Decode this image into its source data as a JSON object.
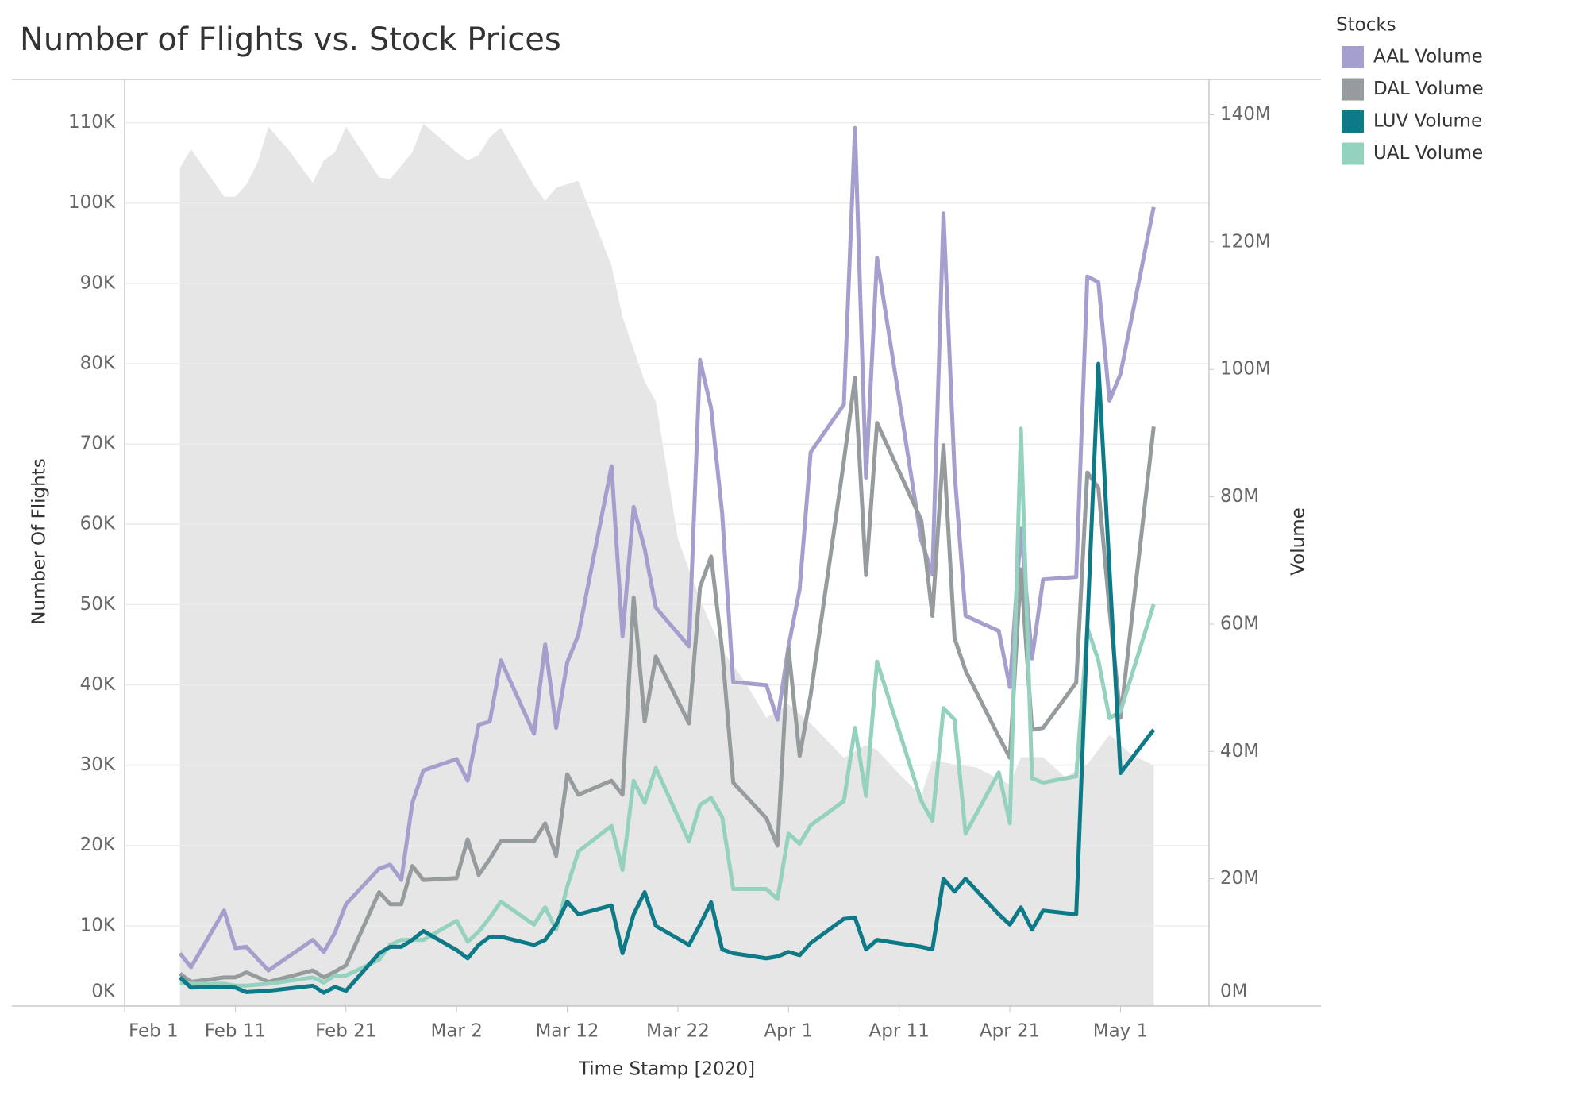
{
  "chart_data": {
    "type": "line",
    "title": "Number of Flights vs. Stock Prices",
    "x_label": "Time Stamp [2020]",
    "y_label": "Number Of Flights",
    "y2_label": "Volume",
    "legend_title": "Stocks",
    "legend_position": "right",
    "grid": true,
    "xlim": [
      "2020-02-01",
      "2020-05-09"
    ],
    "xticks": [
      {
        "value": "2020-02-01",
        "label": "Feb 1"
      },
      {
        "value": "2020-02-11",
        "label": "Feb 11"
      },
      {
        "value": "2020-02-21",
        "label": "Feb 21"
      },
      {
        "value": "2020-03-02",
        "label": "Mar 2"
      },
      {
        "value": "2020-03-12",
        "label": "Mar 12"
      },
      {
        "value": "2020-03-22",
        "label": "Mar 22"
      },
      {
        "value": "2020-04-01",
        "label": "Apr 1"
      },
      {
        "value": "2020-04-11",
        "label": "Apr 11"
      },
      {
        "value": "2020-04-21",
        "label": "Apr 21"
      },
      {
        "value": "2020-05-01",
        "label": "May 1"
      }
    ],
    "ylim": [
      0,
      115200
    ],
    "yticks": [
      {
        "value": 0,
        "label": "0K"
      },
      {
        "value": 10000,
        "label": "10K"
      },
      {
        "value": 20000,
        "label": "20K"
      },
      {
        "value": 30000,
        "label": "30K"
      },
      {
        "value": 40000,
        "label": "40K"
      },
      {
        "value": 50000,
        "label": "50K"
      },
      {
        "value": 60000,
        "label": "60K"
      },
      {
        "value": 70000,
        "label": "70K"
      },
      {
        "value": 80000,
        "label": "80K"
      },
      {
        "value": 90000,
        "label": "90K"
      },
      {
        "value": 100000,
        "label": "100K"
      },
      {
        "value": 110000,
        "label": "110K"
      }
    ],
    "y2lim": [
      0,
      145300
    ],
    "y2lim_scale": 1000,
    "y2ticks": [
      {
        "value": 0,
        "label": "0M"
      },
      {
        "value": 20000000,
        "label": "20M"
      },
      {
        "value": 40000000,
        "label": "40M"
      },
      {
        "value": 60000000,
        "label": "60M"
      },
      {
        "value": 80000000,
        "label": "80M"
      },
      {
        "value": 100000000,
        "label": "100M"
      },
      {
        "value": 120000000,
        "label": "120M"
      },
      {
        "value": 140000000,
        "label": "140M"
      }
    ],
    "area": {
      "color": "#e6e6e6",
      "x": [
        "2020-02-06",
        "2020-02-07",
        "2020-02-10",
        "2020-02-11",
        "2020-02-12",
        "2020-02-13",
        "2020-02-14",
        "2020-02-16",
        "2020-02-18",
        "2020-02-19",
        "2020-02-20",
        "2020-02-21",
        "2020-02-24",
        "2020-02-25",
        "2020-02-27",
        "2020-02-28",
        "2020-03-02",
        "2020-03-03",
        "2020-03-04",
        "2020-03-05",
        "2020-03-06",
        "2020-03-09",
        "2020-03-10",
        "2020-03-11",
        "2020-03-13",
        "2020-03-16",
        "2020-03-17",
        "2020-03-19",
        "2020-03-20",
        "2020-03-22",
        "2020-03-24",
        "2020-03-26",
        "2020-03-28",
        "2020-03-30",
        "2020-04-01",
        "2020-04-03",
        "2020-04-06",
        "2020-04-08",
        "2020-04-09",
        "2020-04-11",
        "2020-04-13",
        "2020-04-14",
        "2020-04-16",
        "2020-04-18",
        "2020-04-21",
        "2020-04-22",
        "2020-04-24",
        "2020-04-26",
        "2020-04-28",
        "2020-04-30",
        "2020-05-02",
        "2020-05-04"
      ],
      "values": [
        104400,
        106700,
        100800,
        100800,
        102300,
        105000,
        109500,
        106300,
        102500,
        105300,
        106300,
        109500,
        103200,
        103000,
        106300,
        109900,
        106300,
        105300,
        106000,
        108200,
        109400,
        102200,
        100300,
        101900,
        102800,
        92200,
        85800,
        77800,
        75300,
        58200,
        50600,
        44300,
        40500,
        35900,
        37600,
        35200,
        30900,
        32500,
        31900,
        28900,
        26200,
        30600,
        30100,
        29700,
        27600,
        31000,
        31000,
        28500,
        30100,
        33800,
        31300,
        30000
      ]
    },
    "x": [
      "2020-02-06",
      "2020-02-07",
      "2020-02-10",
      "2020-02-11",
      "2020-02-12",
      "2020-02-14",
      "2020-02-18",
      "2020-02-19",
      "2020-02-20",
      "2020-02-21",
      "2020-02-24",
      "2020-02-25",
      "2020-02-26",
      "2020-02-27",
      "2020-02-28",
      "2020-03-02",
      "2020-03-03",
      "2020-03-04",
      "2020-03-05",
      "2020-03-06",
      "2020-03-09",
      "2020-03-10",
      "2020-03-11",
      "2020-03-12",
      "2020-03-13",
      "2020-03-16",
      "2020-03-17",
      "2020-03-18",
      "2020-03-19",
      "2020-03-20",
      "2020-03-23",
      "2020-03-24",
      "2020-03-25",
      "2020-03-26",
      "2020-03-27",
      "2020-03-30",
      "2020-03-31",
      "2020-04-01",
      "2020-04-02",
      "2020-04-03",
      "2020-04-06",
      "2020-04-07",
      "2020-04-08",
      "2020-04-09",
      "2020-04-13",
      "2020-04-14",
      "2020-04-15",
      "2020-04-16",
      "2020-04-17",
      "2020-04-20",
      "2020-04-21",
      "2020-04-22",
      "2020-04-23",
      "2020-04-24",
      "2020-04-27",
      "2020-04-28",
      "2020-04-29",
      "2020-04-30",
      "2020-05-01",
      "2020-05-04"
    ],
    "series": [
      {
        "name": "AAL Volume",
        "color": "#a59fcd",
        "axis": "y2",
        "values": [
          8300000,
          6100000,
          15000000,
          9100000,
          9300000,
          5600000,
          10400000,
          8500000,
          11500000,
          16000000,
          21600000,
          22200000,
          19800000,
          31900000,
          37000000,
          38800000,
          35400000,
          44200000,
          44700000,
          54300000,
          42800000,
          56800000,
          43700000,
          54000000,
          58300000,
          84800000,
          58100000,
          78400000,
          71800000,
          62600000,
          56500000,
          101500000,
          93900000,
          77400000,
          50900000,
          50400000,
          45000000,
          56500000,
          65500000,
          87000000,
          94500000,
          137900000,
          83000000,
          117500000,
          73100000,
          67800000,
          124500000,
          84000000,
          61300000,
          58900000,
          50100000,
          75000000,
          54600000,
          67000000,
          67400000,
          114600000,
          113700000,
          95100000,
          99300000,
          125500000
        ]
      },
      {
        "name": "DAL Volume",
        "color": "#969b9d",
        "axis": "y2",
        "values": [
          5100000,
          3800000,
          4500000,
          4500000,
          5300000,
          3800000,
          5600000,
          4500000,
          5400000,
          6400000,
          17900000,
          16000000,
          16000000,
          22000000,
          19800000,
          20100000,
          26200000,
          20600000,
          23100000,
          25900000,
          25900000,
          28700000,
          23600000,
          36400000,
          33200000,
          35400000,
          33200000,
          64200000,
          44700000,
          54900000,
          44400000,
          65800000,
          70600000,
          55900000,
          35100000,
          29500000,
          25200000,
          56200000,
          39300000,
          48900000,
          85600000,
          98700000,
          67700000,
          91600000,
          76300000,
          61300000,
          88100000,
          57800000,
          52700000,
          42300000,
          39000000,
          68600000,
          43400000,
          43700000,
          50800000,
          83800000,
          81400000,
          62300000,
          45300000,
          91000000
        ]
      },
      {
        "name": "UAL Volume",
        "color": "#95d1bf",
        "axis": "y2",
        "values": [
          3700000,
          3500000,
          3500000,
          3200000,
          3200000,
          3500000,
          4500000,
          3700000,
          4800000,
          4800000,
          7300000,
          9600000,
          10400000,
          10400000,
          10400000,
          13400000,
          10100000,
          11700000,
          13900000,
          16400000,
          12800000,
          15500000,
          12000000,
          18800000,
          24300000,
          28300000,
          21400000,
          35400000,
          31900000,
          37400000,
          25900000,
          31600000,
          32700000,
          29700000,
          18400000,
          18400000,
          16800000,
          27100000,
          25500000,
          28400000,
          32200000,
          43700000,
          33000000,
          54100000,
          32200000,
          29100000,
          46800000,
          45000000,
          27100000,
          36700000,
          28700000,
          90700000,
          35800000,
          35100000,
          36100000,
          59400000,
          54300000,
          45200000,
          46300000,
          63100000
        ]
      },
      {
        "name": "LUV Volume",
        "color": "#0e7a87",
        "axis": "y2",
        "values": [
          4500000,
          2900000,
          3000000,
          2900000,
          2200000,
          2400000,
          3200000,
          2100000,
          3000000,
          2400000,
          8300000,
          9300000,
          9300000,
          10400000,
          11800000,
          8800000,
          7500000,
          9600000,
          10900000,
          10900000,
          9600000,
          10400000,
          12800000,
          16400000,
          14400000,
          15800000,
          8300000,
          14400000,
          17900000,
          12600000,
          9600000,
          12800000,
          16300000,
          8900000,
          8300000,
          7500000,
          7800000,
          8500000,
          8000000,
          9900000,
          13700000,
          13900000,
          8900000,
          10400000,
          9300000,
          8900000,
          20000000,
          18000000,
          20000000,
          14400000,
          12800000,
          15500000,
          12000000,
          15000000,
          14400000,
          59700000,
          100900000,
          68600000,
          36600000,
          43400000
        ]
      }
    ],
    "legend_order": [
      0,
      1,
      3,
      2
    ]
  }
}
